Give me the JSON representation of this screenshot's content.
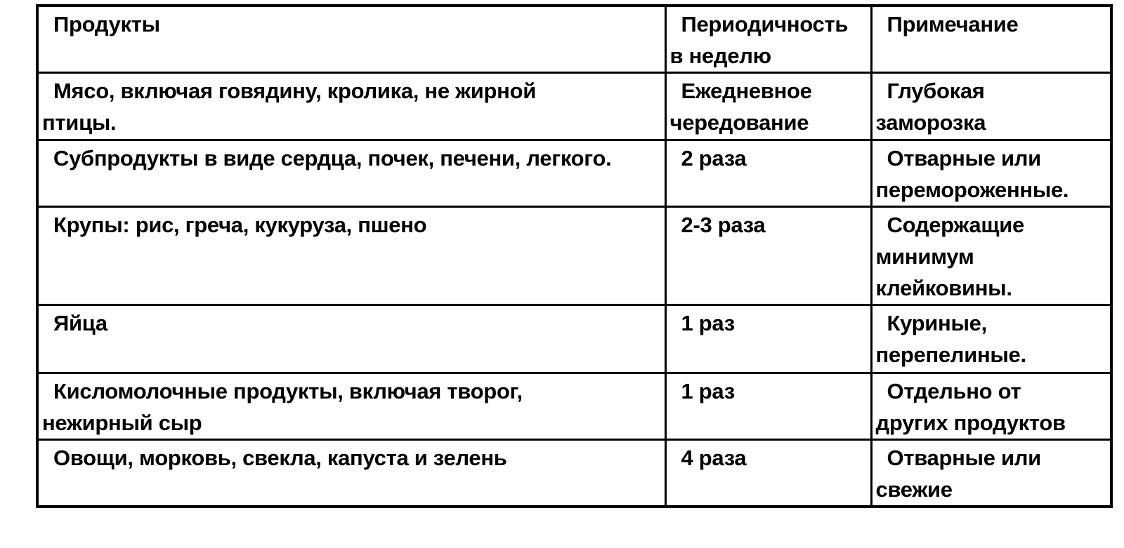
{
  "colors": {
    "background": "#ffffff",
    "border": "#000000",
    "text": "#000000"
  },
  "table": {
    "headers": {
      "product": "Продукты",
      "frequency": "Периодичность\nв неделю",
      "note": "Примечание"
    },
    "rows": [
      {
        "product": "Мясо, включая говядину, кролика, не жирной\nптицы.",
        "frequency": "Ежедневное\nчередование",
        "note": "Глубокая\nзаморозка"
      },
      {
        "product": "Субпродукты в виде сердца, почек, печени, легкого.",
        "frequency": "2 раза",
        "note": "Отварные или\nпереморо­женные."
      },
      {
        "product": "Крупы: рис, греча, кукуруза, пшено",
        "frequency": "2-3 раза",
        "note": "Содержащие\nминимум\nклейковины."
      },
      {
        "product": "Яйца",
        "frequency": "1 раз",
        "note": "Куриные,\nперепелиные."
      },
      {
        "product": "Кисломолочные продукты, включая творог,\nнежирный сыр",
        "frequency": "1 раз",
        "note": "Отдельно от\nдругих продуктов"
      },
      {
        "product": "Овощи, морковь, свекла, капуста и зелень",
        "frequency": "4 раза",
        "note": "Отварные или\nсвежие"
      }
    ]
  }
}
